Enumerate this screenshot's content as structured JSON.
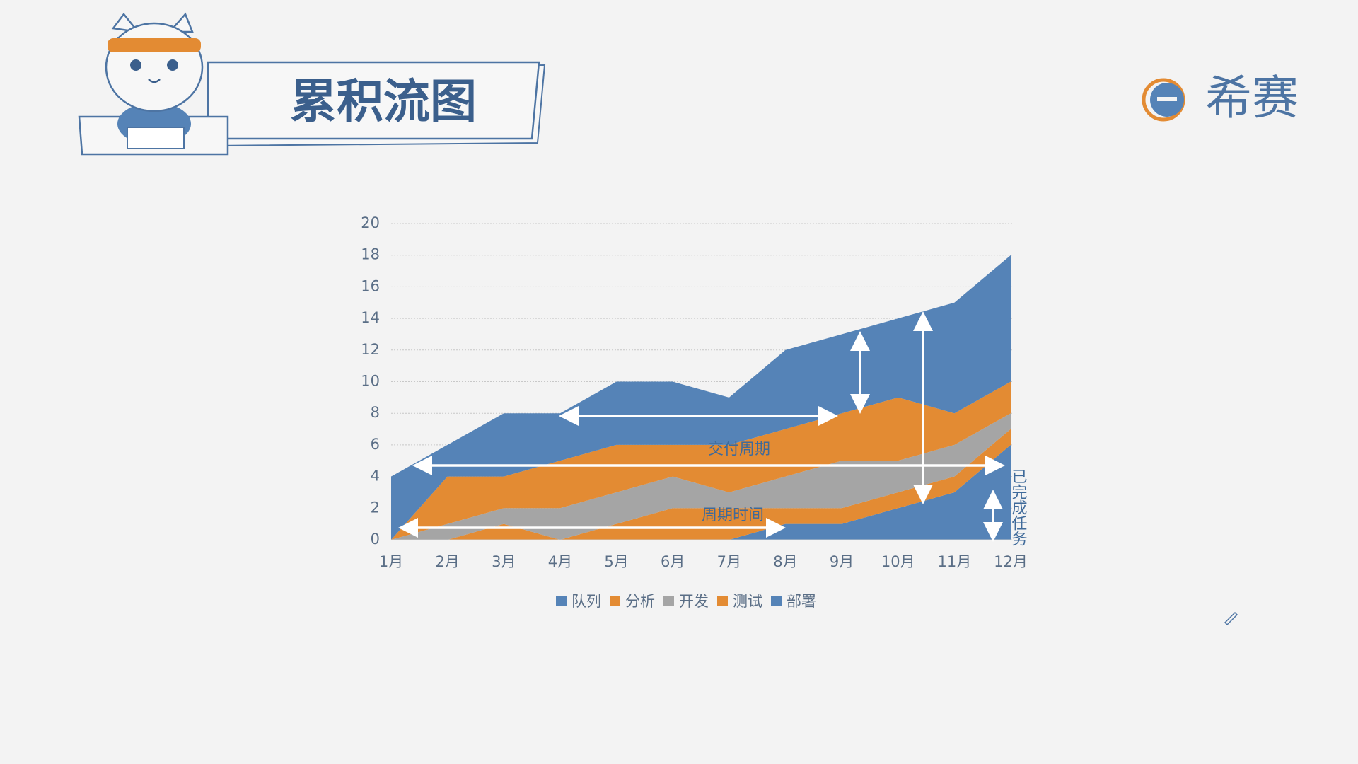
{
  "logo": "希赛",
  "chart_data": {
    "type": "area",
    "stacked": true,
    "title": "累积流图",
    "categories": [
      "1月",
      "2月",
      "3月",
      "4月",
      "5月",
      "6月",
      "7月",
      "8月",
      "9月",
      "10月",
      "11月",
      "12月"
    ],
    "series": [
      {
        "name": "队列",
        "color": "#5583b7",
        "values": [
          4,
          2,
          4,
          3,
          4,
          4,
          3,
          5,
          5,
          5,
          7,
          8
        ]
      },
      {
        "name": "分析",
        "color": "#e38b33",
        "values": [
          0,
          3,
          2,
          3,
          3,
          2,
          3,
          3,
          3,
          4,
          2,
          2
        ]
      },
      {
        "name": "开发",
        "color": "#a5a5a5",
        "values": [
          0,
          1,
          1,
          2,
          2,
          2,
          1,
          2,
          3,
          2,
          2,
          1
        ]
      },
      {
        "name": "测试",
        "color": "#e38b33",
        "values": [
          0,
          0,
          1,
          0,
          1,
          2,
          2,
          1,
          1,
          1,
          1,
          1
        ]
      },
      {
        "name": "部署",
        "color": "#5583b7",
        "values": [
          0,
          0,
          0,
          0,
          0,
          0,
          0,
          1,
          1,
          2,
          3,
          6
        ]
      }
    ],
    "ylim": [
      0,
      20
    ],
    "yticks": [
      0,
      2,
      4,
      6,
      8,
      10,
      12,
      14,
      16,
      18,
      20
    ],
    "grid": true,
    "legend": "bottom",
    "annotations": [
      "交付周期",
      "周期时间",
      "已完成任务"
    ]
  }
}
